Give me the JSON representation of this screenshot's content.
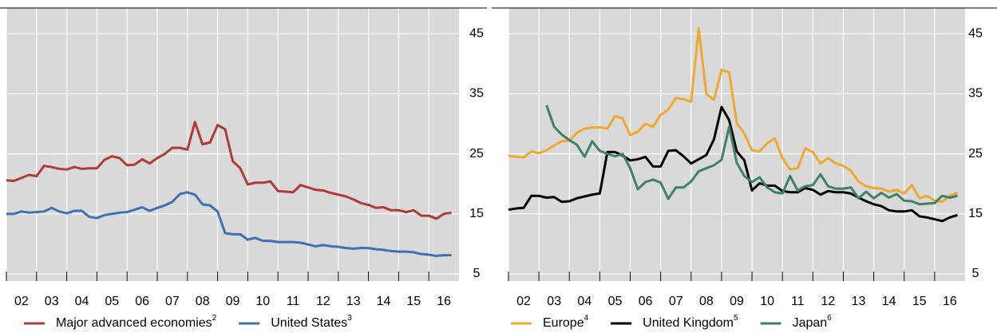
{
  "chart_data": [
    {
      "type": "line",
      "x": [
        2002,
        2002.25,
        2002.5,
        2002.75,
        2003,
        2003.25,
        2003.5,
        2003.75,
        2004,
        2004.25,
        2004.5,
        2004.75,
        2005,
        2005.25,
        2005.5,
        2005.75,
        2006,
        2006.25,
        2006.5,
        2006.75,
        2007,
        2007.25,
        2007.5,
        2007.75,
        2008,
        2008.25,
        2008.5,
        2008.75,
        2009,
        2009.25,
        2009.5,
        2009.75,
        2010,
        2010.25,
        2010.5,
        2010.75,
        2011,
        2011.25,
        2011.5,
        2011.75,
        2012,
        2012.25,
        2012.5,
        2012.75,
        2013,
        2013.25,
        2013.5,
        2013.75,
        2014,
        2014.25,
        2014.5,
        2014.75,
        2015,
        2015.25,
        2015.5,
        2015.75,
        2016,
        2016.25,
        2016.5,
        2016.75
      ],
      "xlim": [
        2002,
        2017
      ],
      "xticks": [
        {
          "value": 2002,
          "label": "02"
        },
        {
          "value": 2003,
          "label": "03"
        },
        {
          "value": 2004,
          "label": "04"
        },
        {
          "value": 2005,
          "label": "05"
        },
        {
          "value": 2006,
          "label": "06"
        },
        {
          "value": 2007,
          "label": "07"
        },
        {
          "value": 2008,
          "label": "08"
        },
        {
          "value": 2009,
          "label": "09"
        },
        {
          "value": 2010,
          "label": "10"
        },
        {
          "value": 2011,
          "label": "11"
        },
        {
          "value": 2012,
          "label": "12"
        },
        {
          "value": 2013,
          "label": "13"
        },
        {
          "value": 2014,
          "label": "14"
        },
        {
          "value": 2015,
          "label": "15"
        },
        {
          "value": 2016,
          "label": "16"
        }
      ],
      "ylim": [
        3.8,
        49.3
      ],
      "yticks": [
        5,
        15,
        25,
        35,
        45
      ],
      "grid": true,
      "series": [
        {
          "name": "Major advanced economies",
          "footnote": "2",
          "color": "#b03a35",
          "values": [
            20.6,
            20.5,
            21.0,
            21.5,
            21.3,
            23.0,
            22.8,
            22.5,
            22.4,
            22.8,
            22.5,
            22.6,
            22.6,
            24.0,
            24.6,
            24.3,
            23.1,
            23.2,
            24.1,
            23.4,
            24.3,
            25.0,
            26.0,
            26.0,
            25.7,
            30.3,
            26.6,
            26.9,
            29.8,
            29.1,
            23.8,
            22.6,
            19.9,
            20.2,
            20.2,
            20.4,
            18.8,
            18.7,
            18.6,
            19.8,
            19.4,
            19.0,
            18.9,
            18.5,
            18.2,
            17.9,
            17.4,
            16.8,
            16.5,
            16.0,
            16.1,
            15.6,
            15.6,
            15.3,
            15.6,
            14.7,
            14.7,
            14.2,
            15.0,
            15.2
          ]
        },
        {
          "name": "United States",
          "footnote": "3",
          "color": "#3f6fb5",
          "values": [
            15.0,
            15.0,
            15.4,
            15.2,
            15.3,
            15.4,
            16.0,
            15.4,
            15.1,
            15.5,
            15.5,
            14.5,
            14.3,
            14.8,
            15.0,
            15.2,
            15.3,
            15.7,
            16.1,
            15.5,
            16.0,
            16.4,
            17.0,
            18.3,
            18.6,
            18.2,
            16.6,
            16.4,
            15.4,
            11.8,
            11.6,
            11.6,
            10.7,
            11.0,
            10.5,
            10.5,
            10.3,
            10.3,
            10.3,
            10.2,
            9.9,
            9.6,
            9.8,
            9.6,
            9.5,
            9.3,
            9.2,
            9.3,
            9.3,
            9.1,
            9.0,
            8.8,
            8.7,
            8.7,
            8.6,
            8.3,
            8.2,
            8.0,
            8.1,
            8.1
          ]
        }
      ]
    },
    {
      "type": "line",
      "x": [
        2002,
        2002.25,
        2002.5,
        2002.75,
        2003,
        2003.25,
        2003.5,
        2003.75,
        2004,
        2004.25,
        2004.5,
        2004.75,
        2005,
        2005.25,
        2005.5,
        2005.75,
        2006,
        2006.25,
        2006.5,
        2006.75,
        2007,
        2007.25,
        2007.5,
        2007.75,
        2008,
        2008.25,
        2008.5,
        2008.75,
        2009,
        2009.25,
        2009.5,
        2009.75,
        2010,
        2010.25,
        2010.5,
        2010.75,
        2011,
        2011.25,
        2011.5,
        2011.75,
        2012,
        2012.25,
        2012.5,
        2012.75,
        2013,
        2013.25,
        2013.5,
        2013.75,
        2014,
        2014.25,
        2014.5,
        2014.75,
        2015,
        2015.25,
        2015.5,
        2015.75,
        2016,
        2016.25,
        2016.5,
        2016.75
      ],
      "xlim": [
        2002,
        2017
      ],
      "xticks": [
        {
          "value": 2002,
          "label": "02"
        },
        {
          "value": 2003,
          "label": "03"
        },
        {
          "value": 2004,
          "label": "04"
        },
        {
          "value": 2005,
          "label": "05"
        },
        {
          "value": 2006,
          "label": "06"
        },
        {
          "value": 2007,
          "label": "07"
        },
        {
          "value": 2008,
          "label": "08"
        },
        {
          "value": 2009,
          "label": "09"
        },
        {
          "value": 2010,
          "label": "10"
        },
        {
          "value": 2011,
          "label": "11"
        },
        {
          "value": 2012,
          "label": "12"
        },
        {
          "value": 2013,
          "label": "13"
        },
        {
          "value": 2014,
          "label": "14"
        },
        {
          "value": 2015,
          "label": "15"
        },
        {
          "value": 2016,
          "label": "16"
        }
      ],
      "ylim": [
        3.8,
        49.3
      ],
      "yticks": [
        5,
        15,
        25,
        35,
        45
      ],
      "grid": true,
      "series": [
        {
          "name": "Europe",
          "footnote": "4",
          "color": "#f0a830",
          "values": [
            24.7,
            24.5,
            24.4,
            25.4,
            25.1,
            25.6,
            26.4,
            27.1,
            27.2,
            28.5,
            29.2,
            29.4,
            29.4,
            29.2,
            31.3,
            30.9,
            28.1,
            28.7,
            30.0,
            29.5,
            31.5,
            32.4,
            34.3,
            34.1,
            33.7,
            45.9,
            35.0,
            34.0,
            39.0,
            38.6,
            30.1,
            28.4,
            25.6,
            25.4,
            26.8,
            27.6,
            24.3,
            22.4,
            22.6,
            25.9,
            25.3,
            23.4,
            24.3,
            23.4,
            23.0,
            22.2,
            20.4,
            19.6,
            19.3,
            19.2,
            18.7,
            19.0,
            18.4,
            19.8,
            17.6,
            18.0,
            17.2,
            17.0,
            18.0,
            18.5
          ]
        },
        {
          "name": "United Kingdom",
          "footnote": "5",
          "color": "#000000",
          "values": [
            15.7,
            15.9,
            16.0,
            18.0,
            18.0,
            17.7,
            17.8,
            17.0,
            17.1,
            17.6,
            17.9,
            18.2,
            18.4,
            25.3,
            25.3,
            24.7,
            23.9,
            24.1,
            24.5,
            22.9,
            22.9,
            25.5,
            25.6,
            24.6,
            23.4,
            24.1,
            24.8,
            27.4,
            32.8,
            30.6,
            25.4,
            23.9,
            18.9,
            20.1,
            19.7,
            19.7,
            18.8,
            18.6,
            18.6,
            19.3,
            19.0,
            18.2,
            18.8,
            18.6,
            18.6,
            18.4,
            17.7,
            17.1,
            16.6,
            16.3,
            15.6,
            15.4,
            15.4,
            15.6,
            14.6,
            14.4,
            14.1,
            13.8,
            14.4,
            14.8
          ]
        },
        {
          "name": "Japan",
          "footnote": "6",
          "color": "#3e8068",
          "values": [
            null,
            null,
            null,
            null,
            null,
            33.1,
            29.5,
            28.2,
            27.3,
            26.5,
            24.5,
            27.1,
            25.5,
            25.0,
            24.6,
            25.0,
            22.6,
            19.1,
            20.3,
            20.7,
            20.2,
            17.5,
            19.4,
            19.4,
            20.4,
            22.1,
            22.6,
            23.1,
            24.0,
            29.5,
            23.5,
            21.3,
            20.3,
            21.1,
            19.4,
            18.6,
            18.4,
            21.3,
            18.9,
            19.6,
            19.8,
            21.6,
            19.6,
            19.2,
            19.2,
            19.4,
            17.6,
            18.7,
            17.6,
            18.5,
            17.7,
            18.3,
            17.2,
            17.1,
            16.6,
            16.7,
            16.8,
            18.0,
            17.7,
            18.0
          ]
        }
      ]
    }
  ]
}
